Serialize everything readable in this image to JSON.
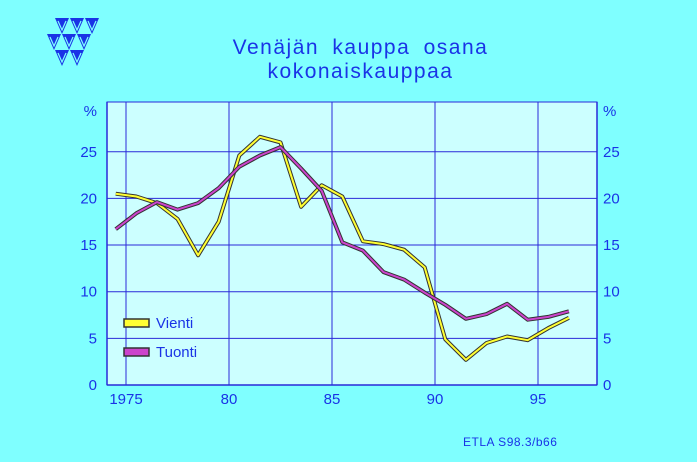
{
  "title_lines": [
    "Venäjän kauppa osana",
    "kokonaiskauppaa"
  ],
  "source_note": "ETLA S98.3/b66",
  "colors": {
    "background": "#7fffff",
    "plot_area": "#ccffff",
    "axis_text": "#1a33e6",
    "grid": "#2a2ad8",
    "vienti": "#ffff33",
    "tuonti": "#cc44cc"
  },
  "logo": "etla-triangle-logo",
  "chart_data": {
    "type": "line",
    "title": "Venäjän kauppa osana kokonaiskauppaa",
    "left_unit": "%",
    "right_unit": "%",
    "x_ticks": [
      "1975",
      "80",
      "85",
      "90",
      "95"
    ],
    "x_tick_values": [
      1975,
      1980,
      1985,
      1990,
      1995
    ],
    "y_ticks": [
      "0",
      "5",
      "10",
      "15",
      "20",
      "25"
    ],
    "y_tick_values": [
      0,
      5,
      10,
      15,
      20,
      25
    ],
    "xlim": [
      1975,
      1997.5
    ],
    "ylim": [
      0,
      30
    ],
    "grid": true,
    "legend_position": "bottom-left",
    "x": [
      1974.5,
      1975.5,
      1976.5,
      1977.5,
      1978.5,
      1979.5,
      1980.5,
      1981.5,
      1982.5,
      1983.5,
      1984.5,
      1985.5,
      1986.5,
      1987.5,
      1988.5,
      1989.5,
      1990.5,
      1991.5,
      1992.5,
      1993.5,
      1994.5,
      1995.5,
      1996.5
    ],
    "series": [
      {
        "name": "Vienti",
        "color": "#ffff33",
        "values": [
          20.5,
          20.2,
          19.5,
          17.8,
          13.9,
          17.5,
          24.6,
          26.6,
          26.0,
          19.1,
          21.4,
          20.2,
          15.4,
          15.1,
          14.5,
          12.6,
          4.9,
          2.7,
          4.5,
          5.2,
          4.8,
          6.1,
          7.2
        ]
      },
      {
        "name": "Tuonti",
        "color": "#cc44cc",
        "values": [
          16.7,
          18.4,
          19.6,
          18.8,
          19.5,
          21.1,
          23.4,
          24.6,
          25.5,
          23.2,
          20.8,
          15.3,
          14.4,
          12.1,
          11.3,
          9.9,
          8.6,
          7.1,
          7.6,
          8.7,
          7.0,
          7.3,
          7.9
        ]
      }
    ]
  }
}
